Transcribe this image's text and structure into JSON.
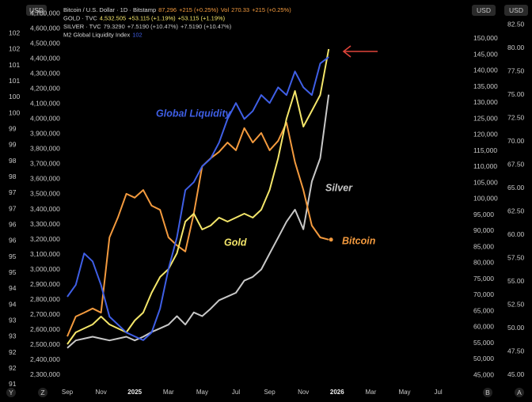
{
  "chart_data": {
    "type": "line",
    "header": [
      [
        "Bitcoin / U.S. Dollar · 1D · Bitstamp",
        "87,296",
        "+215 (+0.25%)",
        "Vol",
        "270.33",
        "+215 (+0.25%)"
      ],
      [
        "GOLD · TVC",
        "4,532.505",
        "+53.115 (+1.19%)",
        "+53.115 (+1.19%)"
      ],
      [
        "SILVER · TVC",
        "79.3290",
        "+7.5190 (+10.47%)",
        "+7.5190 (+10.47%)"
      ],
      [
        "M2 Global Liquidity Index",
        "102"
      ]
    ],
    "currency_labels": [
      "USD",
      "USD",
      "USD"
    ],
    "corner_labels": [
      "Y",
      "Z",
      "B",
      "A"
    ],
    "categories": [
      "Sep",
      null,
      null,
      null,
      "Nov",
      null,
      null,
      null,
      "2025",
      null,
      null,
      null,
      "Mar",
      null,
      null,
      null,
      "May",
      null,
      null,
      null,
      "Jul",
      null,
      null,
      null,
      "Sep",
      null,
      null,
      null,
      "Nov",
      null,
      null,
      null,
      "2026",
      null,
      null,
      null,
      "Mar",
      null,
      null,
      null,
      "May",
      null,
      null,
      null,
      "Jul"
    ],
    "series": [
      {
        "name": "Bitcoin",
        "color": "#f39a3e",
        "axis": "y2",
        "values": [
          57100,
          63300,
          64500,
          65800,
          64500,
          88000,
          94200,
          101600,
          100400,
          102800,
          97900,
          96600,
          88000,
          85500,
          83600,
          95400,
          110200,
          112700,
          114700,
          117600,
          115200,
          122100,
          117600,
          120600,
          115200,
          118100,
          123800,
          111500,
          102800,
          91700,
          88000,
          87300,
          null,
          null,
          null,
          null,
          null,
          null,
          null,
          null,
          null,
          null,
          null,
          null,
          null
        ]
      },
      {
        "name": "Gold",
        "color": "#f4e66a",
        "axis": "y",
        "values": [
          2504700,
          2583400,
          2609700,
          2636000,
          2688500,
          2636000,
          2609700,
          2583400,
          2662200,
          2714700,
          2846000,
          2951100,
          3003600,
          3108600,
          3318700,
          3371200,
          3266200,
          3292500,
          3345000,
          3318700,
          3345000,
          3371200,
          3345000,
          3397500,
          3528800,
          3738900,
          4001500,
          4185300,
          3949000,
          4054000,
          4159000,
          4463700,
          null,
          null,
          null,
          null,
          null,
          null,
          null,
          null,
          null,
          null,
          null,
          null,
          null
        ]
      },
      {
        "name": "Silver",
        "color": "#c8c8c8",
        "axis": "y3",
        "values": [
          47.9,
          48.7,
          48.9,
          49.1,
          48.9,
          48.7,
          48.9,
          49.1,
          48.7,
          49.1,
          49.6,
          50.0,
          50.4,
          51.3,
          50.4,
          51.7,
          51.3,
          52.1,
          53.0,
          53.4,
          53.8,
          55.1,
          55.5,
          56.3,
          58.0,
          59.7,
          61.4,
          62.7,
          60.6,
          65.7,
          68.2,
          75.0,
          null,
          null,
          null,
          null,
          null,
          null,
          null,
          null,
          null,
          null,
          null,
          null,
          null
        ]
      },
      {
        "name": "Global Liquidity",
        "color": "#3f5fe6",
        "axis": "y4",
        "values": [
          94.0,
          94.37,
          95.36,
          95.11,
          94.37,
          93.38,
          93.13,
          92.88,
          92.76,
          92.64,
          92.88,
          93.63,
          94.87,
          95.86,
          97.34,
          97.59,
          98.09,
          98.33,
          98.83,
          99.57,
          100.07,
          99.57,
          99.82,
          100.32,
          100.07,
          100.56,
          100.32,
          101.06,
          100.56,
          100.32,
          101.31,
          101.51,
          null,
          null,
          null,
          null,
          null,
          null,
          null,
          null,
          null,
          null,
          null,
          null,
          null
        ]
      }
    ],
    "ylim": [
      2215800,
      4736800
    ],
    "yticks": [
      {
        "value": 4700000,
        "label": "4,700,000"
      },
      {
        "value": 4600000,
        "label": "4,600,000"
      },
      {
        "value": 4500000,
        "label": "4,500,000"
      },
      {
        "value": 4400000,
        "label": "4,400,000"
      },
      {
        "value": 4300000,
        "label": "4,300,000"
      },
      {
        "value": 4200000,
        "label": "4,200,000"
      },
      {
        "value": 4100000,
        "label": "4,100,000"
      },
      {
        "value": 4000000,
        "label": "4,000,000"
      },
      {
        "value": 3900000,
        "label": "3,900,000"
      },
      {
        "value": 3800000,
        "label": "3,800,000"
      },
      {
        "value": 3700000,
        "label": "3,700,000"
      },
      {
        "value": 3600000,
        "label": "3,600,000"
      },
      {
        "value": 3500000,
        "label": "3,500,000"
      },
      {
        "value": 3400000,
        "label": "3,400,000"
      },
      {
        "value": 3300000,
        "label": "3,300,000"
      },
      {
        "value": 3200000,
        "label": "3,200,000"
      },
      {
        "value": 3100000,
        "label": "3,100,000"
      },
      {
        "value": 3000000,
        "label": "3,000,000"
      },
      {
        "value": 2900000,
        "label": "2,900,000"
      },
      {
        "value": 2800000,
        "label": "2,800,000"
      },
      {
        "value": 2700000,
        "label": "2,700,000"
      },
      {
        "value": 2600000,
        "label": "2,600,000"
      },
      {
        "value": 2500000,
        "label": "2,500,000"
      },
      {
        "value": 2400000,
        "label": "2,400,000"
      },
      {
        "value": 2300000,
        "label": "2,300,000"
      }
    ],
    "y2lim": [
      41060,
      159630
    ],
    "y2ticks": [
      {
        "value": 150000,
        "label": "150,000"
      },
      {
        "value": 145000,
        "label": "145,000"
      },
      {
        "value": 140000,
        "label": "140,000"
      },
      {
        "value": 135000,
        "label": "135,000"
      },
      {
        "value": 130000,
        "label": "130,000"
      },
      {
        "value": 125000,
        "label": "125,000"
      },
      {
        "value": 120000,
        "label": "120,000"
      },
      {
        "value": 115000,
        "label": "115,000"
      },
      {
        "value": 110000,
        "label": "110,000"
      },
      {
        "value": 105000,
        "label": "105,000"
      },
      {
        "value": 100000,
        "label": "100,000"
      },
      {
        "value": 95000,
        "label": "95,000"
      },
      {
        "value": 90000,
        "label": "90,000"
      },
      {
        "value": 85000,
        "label": "85,000"
      },
      {
        "value": 80000,
        "label": "80,000"
      },
      {
        "value": 75000,
        "label": "75,000"
      },
      {
        "value": 70000,
        "label": "70,000"
      },
      {
        "value": 65000,
        "label": "65,000"
      },
      {
        "value": 60000,
        "label": "60,000"
      },
      {
        "value": 55000,
        "label": "55,000"
      },
      {
        "value": 50000,
        "label": "50,000"
      },
      {
        "value": 45000,
        "label": "45,000"
      }
    ],
    "y3lim": [
      43.64,
      84.28
    ],
    "y3ticks": [
      {
        "value": 82.5,
        "label": "82.50"
      },
      {
        "value": 80,
        "label": "80.00"
      },
      {
        "value": 77.5,
        "label": "77.50"
      },
      {
        "value": 75,
        "label": "75.00"
      },
      {
        "value": 72.5,
        "label": "72.50"
      },
      {
        "value": 70,
        "label": "70.00"
      },
      {
        "value": 67.5,
        "label": "67.50"
      },
      {
        "value": 65,
        "label": "65.00"
      },
      {
        "value": 62.5,
        "label": "62.50"
      },
      {
        "value": 60,
        "label": "60.00"
      },
      {
        "value": 57.5,
        "label": "57.50"
      },
      {
        "value": 55,
        "label": "55.00"
      },
      {
        "value": 52.5,
        "label": "52.50"
      },
      {
        "value": 50,
        "label": "50.00"
      },
      {
        "value": 47.5,
        "label": "47.50"
      },
      {
        "value": 45,
        "label": "45.00"
      }
    ],
    "y4lim": [
      91.15,
      103.05
    ],
    "y4ticks": [
      {
        "value": 102.25,
        "label": "102"
      },
      {
        "value": 101.75,
        "label": "102"
      },
      {
        "value": 101.25,
        "label": "101"
      },
      {
        "value": 100.75,
        "label": "101"
      },
      {
        "value": 100.25,
        "label": "100"
      },
      {
        "value": 99.75,
        "label": "100"
      },
      {
        "value": 99.25,
        "label": "99"
      },
      {
        "value": 98.75,
        "label": "99"
      },
      {
        "value": 98.25,
        "label": "98"
      },
      {
        "value": 97.75,
        "label": "98"
      },
      {
        "value": 97.25,
        "label": "97"
      },
      {
        "value": 96.75,
        "label": "97"
      },
      {
        "value": 96.25,
        "label": "96"
      },
      {
        "value": 95.75,
        "label": "96"
      },
      {
        "value": 95.25,
        "label": "95"
      },
      {
        "value": 94.75,
        "label": "95"
      },
      {
        "value": 94.25,
        "label": "94"
      },
      {
        "value": 93.75,
        "label": "94"
      },
      {
        "value": 93.25,
        "label": "93"
      },
      {
        "value": 92.75,
        "label": "93"
      },
      {
        "value": 92.25,
        "label": "92"
      },
      {
        "value": 91.75,
        "label": "92"
      },
      {
        "value": 91.25,
        "label": "91"
      }
    ],
    "grid": false
  }
}
